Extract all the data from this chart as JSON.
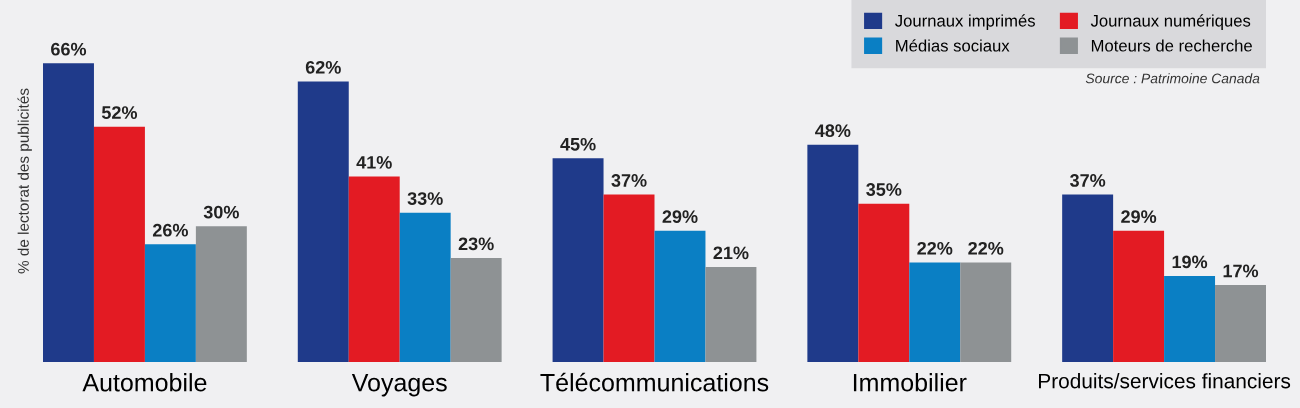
{
  "chart_data": {
    "type": "bar",
    "ylabel": "% de lectorat des publicités",
    "categories": [
      "Automobile",
      "Voyages",
      "Télécommunications",
      "Immobilier",
      "Produits/services financiers"
    ],
    "series": [
      {
        "name": "Journaux imprimés",
        "color": "#1f3a8a",
        "values": [
          66,
          62,
          45,
          48,
          37
        ],
        "value_labels": [
          "66%",
          "62%",
          "45%",
          "48%",
          "37%"
        ]
      },
      {
        "name": "Journaux numériques",
        "color": "#e31b23",
        "values": [
          52,
          41,
          37,
          35,
          29
        ],
        "value_labels": [
          "52%",
          "41%",
          "37%",
          "35%",
          "29%"
        ]
      },
      {
        "name": "Médias sociaux",
        "color": "#0a7fc4",
        "values": [
          26,
          33,
          29,
          22,
          19
        ],
        "value_labels": [
          "26%",
          "33%",
          "29%",
          "22%",
          "19%"
        ]
      },
      {
        "name": "Moteurs de recherche",
        "color": "#8e9294",
        "values": [
          30,
          23,
          21,
          22,
          17
        ],
        "value_labels": [
          "30%",
          "23%",
          "21%",
          "22%",
          "17%"
        ]
      }
    ],
    "relative": false,
    "ylim": [
      0,
      80
    ],
    "tick_labels": "x",
    "grid": false,
    "legend": "top right",
    "annotations": [
      "Source : Patrimoine Canada"
    ]
  }
}
